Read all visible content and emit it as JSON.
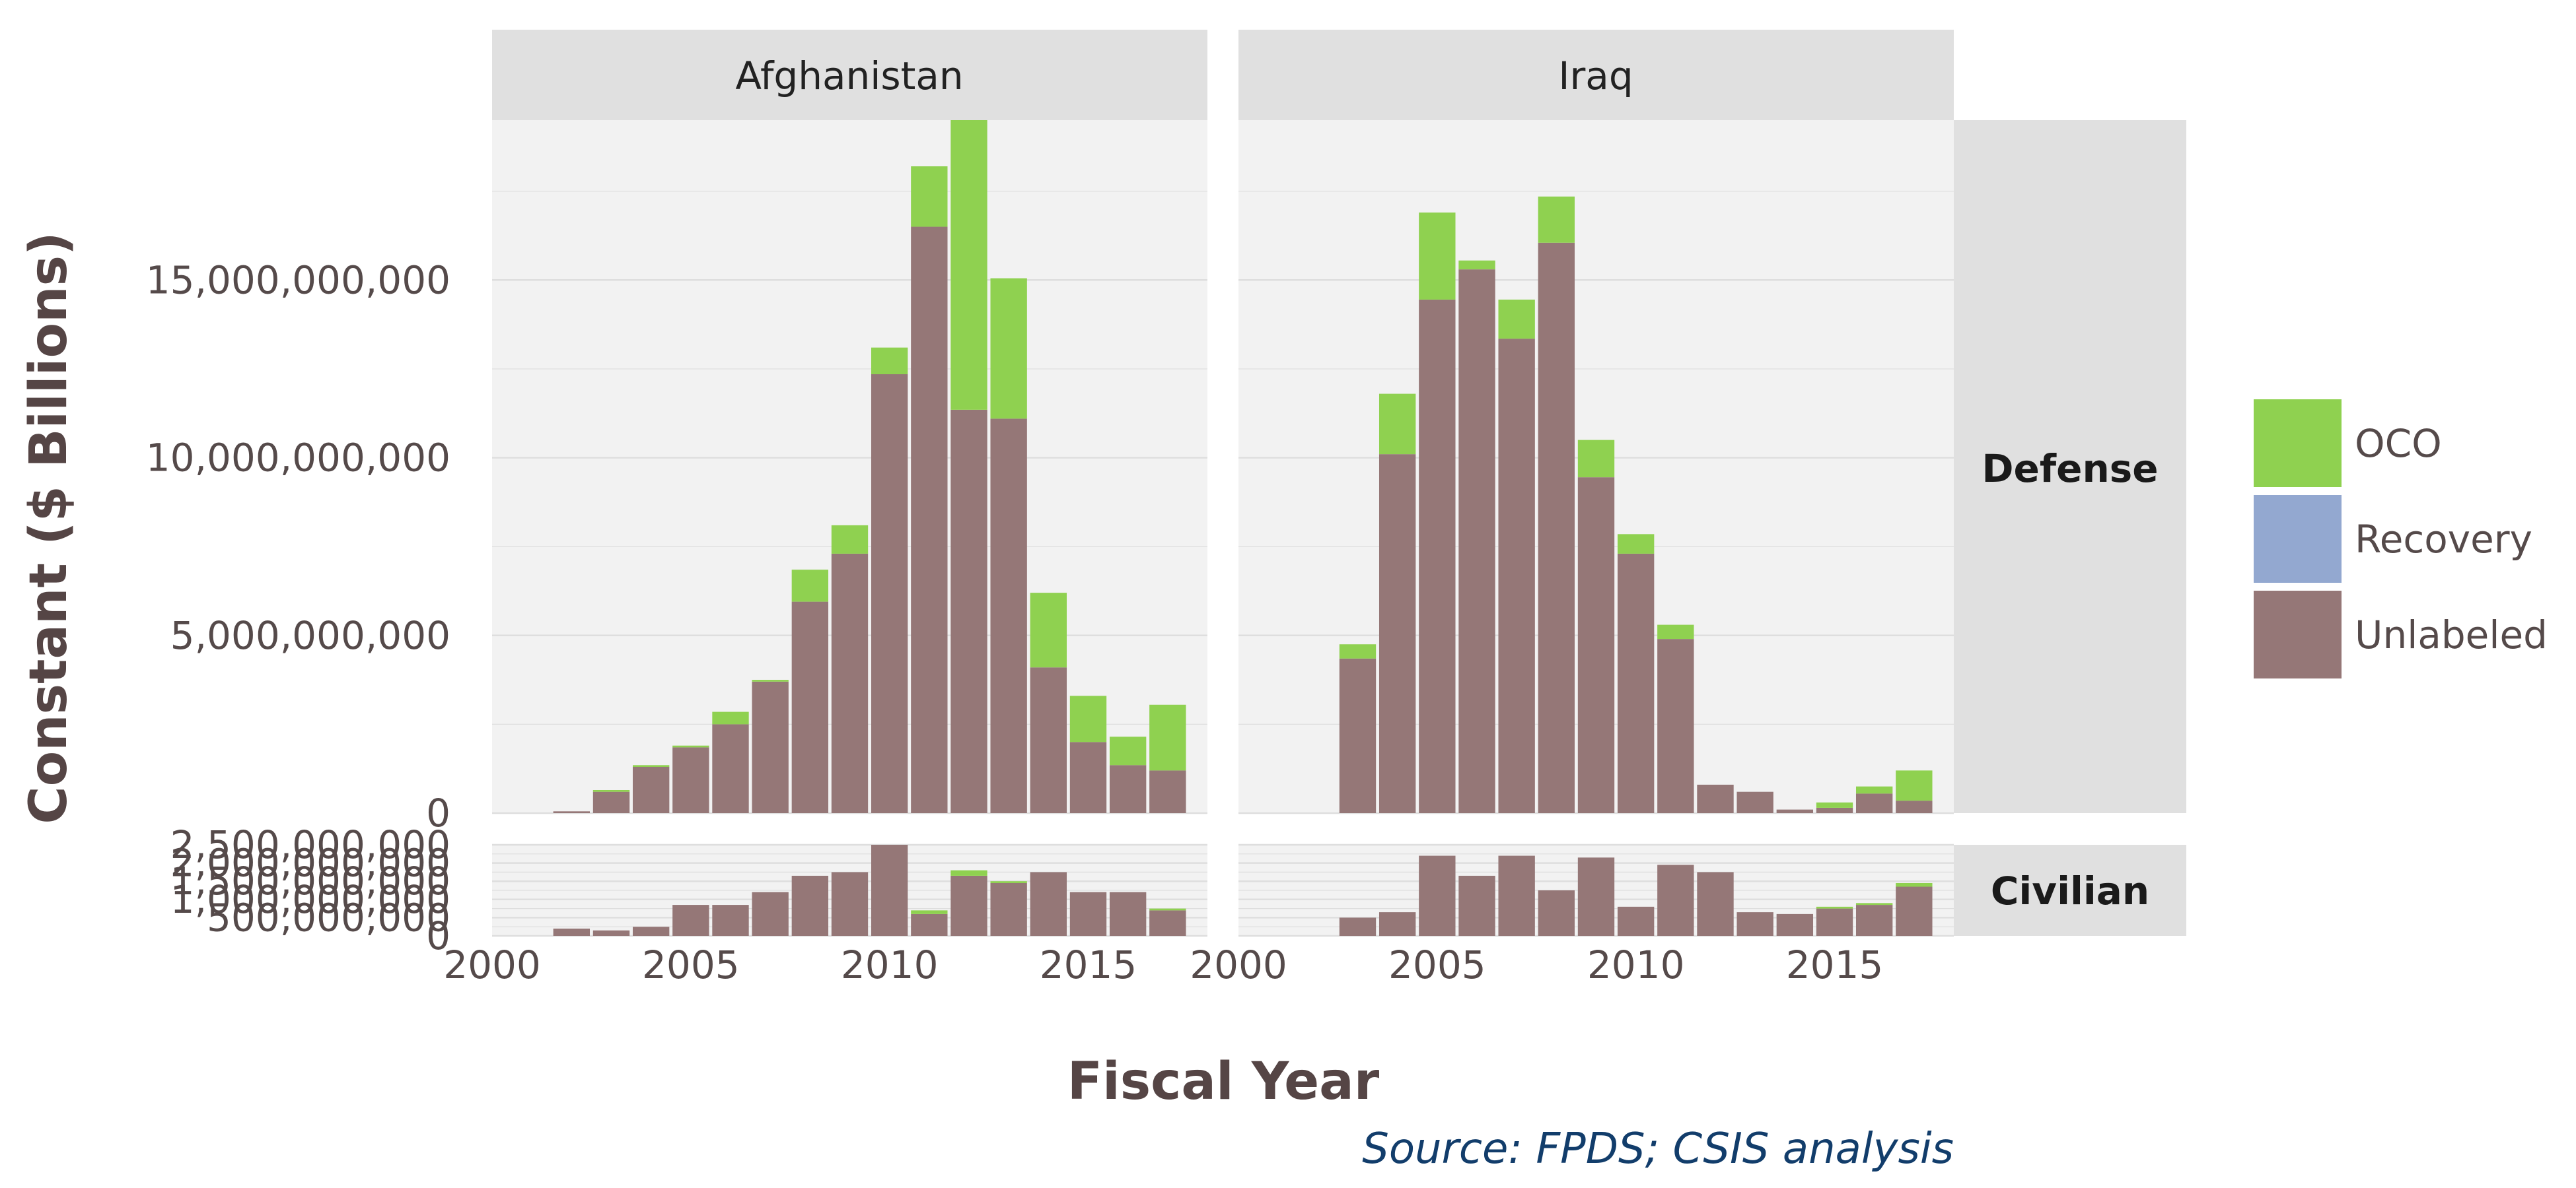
{
  "chart_data": {
    "type": "bar",
    "stacked": true,
    "facets": {
      "columns": [
        "Afghanistan",
        "Iraq"
      ],
      "rows": [
        "Defense",
        "Civilian"
      ]
    },
    "xlabel": "Fiscal Year",
    "ylabel": "Constant ($ Billions)",
    "caption": "Source: FPDS; CSIS analysis",
    "x_ticks": [
      "2000",
      "2005",
      "2010",
      "2015"
    ],
    "xlim": [
      2000,
      2018
    ],
    "defense_y_ticks": [
      {
        "value": 0,
        "label": "0"
      },
      {
        "value": 5000000000,
        "label": "5,000,000,000"
      },
      {
        "value": 10000000000,
        "label": "10,000,000,000"
      },
      {
        "value": 15000000000,
        "label": "15,000,000,000"
      }
    ],
    "defense_ylim": [
      0,
      19500000000
    ],
    "civilian_y_ticks": [
      {
        "value": 0,
        "label": "0"
      },
      {
        "value": 500000000,
        "label": "500,000,000"
      },
      {
        "value": 1000000000,
        "label": "1,000,000,000"
      },
      {
        "value": 1500000000,
        "label": "1,500,000,000"
      },
      {
        "value": 2000000000,
        "label": "2,000,000,000"
      },
      {
        "value": 2500000000,
        "label": "2,500,000,000"
      }
    ],
    "civilian_ylim": [
      0,
      2500000000
    ],
    "legend": {
      "position": "right",
      "entries": [
        {
          "name": "OCO",
          "color": "#8fd150"
        },
        {
          "name": "Recovery",
          "color": "#93a8d0"
        },
        {
          "name": "Unlabeled",
          "color": "#957777"
        }
      ]
    },
    "panels": [
      {
        "column": "Afghanistan",
        "row": "Defense",
        "x": [
          2002,
          2003,
          2004,
          2005,
          2006,
          2007,
          2008,
          2009,
          2010,
          2011,
          2012,
          2013,
          2014,
          2015,
          2016,
          2017
        ],
        "series": [
          {
            "name": "Unlabeled",
            "values": [
              50000000,
              600000000,
              1300000000,
              1850000000,
              2500000000,
              3700000000,
              5950000000,
              7300000000,
              12350000000,
              16500000000,
              11350000000,
              11100000000,
              4100000000,
              2000000000,
              1350000000,
              1200000000
            ]
          },
          {
            "name": "OCO",
            "values": [
              0,
              50000000,
              50000000,
              50000000,
              350000000,
              50000000,
              900000000,
              800000000,
              750000000,
              1700000000,
              8150000000,
              3950000000,
              2100000000,
              1300000000,
              800000000,
              1850000000
            ]
          }
        ]
      },
      {
        "column": "Iraq",
        "row": "Defense",
        "x": [
          2003,
          2004,
          2005,
          2006,
          2007,
          2008,
          2009,
          2010,
          2011,
          2012,
          2013,
          2014,
          2015,
          2016,
          2017
        ],
        "series": [
          {
            "name": "Unlabeled",
            "values": [
              4350000000,
              10100000000,
              14450000000,
              15300000000,
              13350000000,
              16050000000,
              9450000000,
              7300000000,
              4900000000,
              800000000,
              600000000,
              100000000,
              150000000,
              550000000,
              350000000
            ]
          },
          {
            "name": "OCO",
            "values": [
              400000000,
              1700000000,
              2450000000,
              250000000,
              1100000000,
              1300000000,
              1050000000,
              550000000,
              400000000,
              0,
              0,
              0,
              150000000,
              200000000,
              850000000
            ]
          }
        ]
      },
      {
        "column": "Afghanistan",
        "row": "Civilian",
        "x": [
          2002,
          2003,
          2004,
          2005,
          2006,
          2007,
          2008,
          2009,
          2010,
          2011,
          2012,
          2013,
          2014,
          2015,
          2016,
          2017
        ],
        "series": [
          {
            "name": "Unlabeled",
            "values": [
              200000000,
              150000000,
              250000000,
              850000000,
              850000000,
              1200000000,
              1650000000,
              1750000000,
              2500000000,
              600000000,
              1650000000,
              1450000000,
              1750000000,
              1200000000,
              1200000000,
              700000000
            ]
          },
          {
            "name": "OCO",
            "values": [
              0,
              0,
              0,
              0,
              0,
              0,
              0,
              0,
              0,
              100000000,
              150000000,
              50000000,
              0,
              0,
              0,
              50000000
            ]
          }
        ]
      },
      {
        "column": "Iraq",
        "row": "Civilian",
        "x": [
          2003,
          2004,
          2005,
          2006,
          2007,
          2008,
          2009,
          2010,
          2011,
          2012,
          2013,
          2014,
          2015,
          2016,
          2017
        ],
        "series": [
          {
            "name": "Unlabeled",
            "values": [
              500000000,
              650000000,
              2200000000,
              1650000000,
              2200000000,
              1250000000,
              2150000000,
              800000000,
              1950000000,
              1750000000,
              650000000,
              600000000,
              750000000,
              850000000,
              1350000000
            ]
          },
          {
            "name": "OCO",
            "values": [
              0,
              0,
              0,
              0,
              0,
              0,
              0,
              0,
              0,
              0,
              0,
              0,
              50000000,
              50000000,
              100000000
            ]
          }
        ]
      }
    ]
  }
}
